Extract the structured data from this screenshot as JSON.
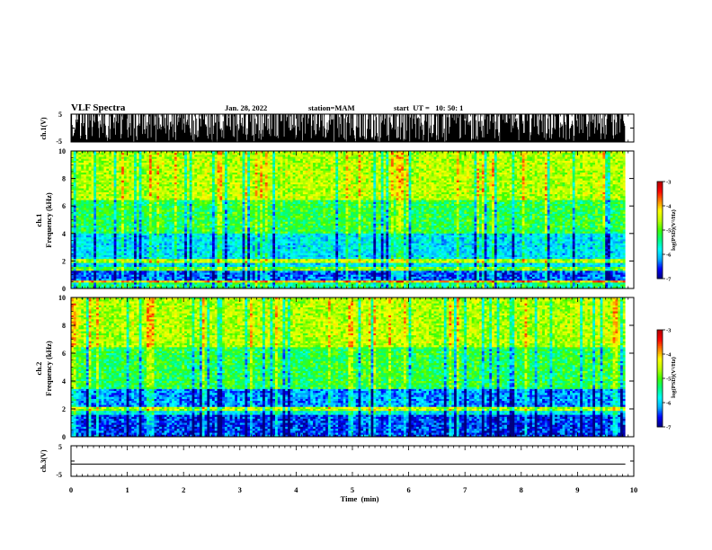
{
  "header": {
    "title": "VLF Spectra",
    "date": "Jan. 28, 2022",
    "station": "station=MAM",
    "start": "start  UT =   10: 50: 1"
  },
  "chart_data": [
    {
      "type": "line",
      "panel": "ch1-waveform",
      "ylabel": "ch.1(V)",
      "ylim": [
        -5,
        5
      ],
      "yticks": [
        "5",
        "-5"
      ],
      "xlim": [
        0,
        10
      ],
      "description_values": {
        "baseline": -5,
        "impulsive_spikes_max": 5
      }
    },
    {
      "type": "heatmap",
      "panel": "ch1-spectrogram",
      "ylabel": "ch.1 Frequency (kHz)",
      "ylabel_lines": [
        "ch.1",
        "Frequency (kHz)"
      ],
      "ylim": [
        0,
        10
      ],
      "yticks": [
        "0",
        "2",
        "4",
        "6",
        "8",
        "10"
      ],
      "xlim": [
        0,
        9.85
      ],
      "colorbar": {
        "label": "log(PSD)(V²/Hz)",
        "range": [
          -7,
          -3
        ],
        "ticks": [
          "-3",
          "-4",
          "-5",
          "-6",
          "-7"
        ]
      },
      "bands_khz": [
        {
          "low": 0.0,
          "high": 0.45,
          "level": -5.4
        },
        {
          "low": 0.45,
          "high": 0.6,
          "level": -4.0
        },
        {
          "low": 0.6,
          "high": 1.3,
          "level": -6.4
        },
        {
          "low": 1.3,
          "high": 1.6,
          "level": -5.0
        },
        {
          "low": 1.6,
          "high": 1.85,
          "level": -5.9
        },
        {
          "low": 1.85,
          "high": 2.15,
          "level": -4.6
        },
        {
          "low": 2.15,
          "high": 4.0,
          "level": -5.9
        },
        {
          "low": 4.0,
          "high": 6.5,
          "level": -5.2
        },
        {
          "low": 6.5,
          "high": 10.0,
          "level": -4.6
        }
      ]
    },
    {
      "type": "heatmap",
      "panel": "ch2-spectrogram",
      "ylabel": "ch.2 Frequency (kHz)",
      "ylabel_lines": [
        "ch.2",
        "Frequency (kHz)"
      ],
      "ylim": [
        0,
        10
      ],
      "yticks": [
        "0",
        "2",
        "4",
        "6",
        "8",
        "10"
      ],
      "xlim": [
        0,
        9.85
      ],
      "colorbar": {
        "label": "log(PSD)(V²/Hz)",
        "range": [
          -7,
          -3
        ],
        "ticks": [
          "-3",
          "-4",
          "-5",
          "-6",
          "-7"
        ]
      },
      "bands_khz": [
        {
          "low": 0.0,
          "high": 1.6,
          "level": -6.5
        },
        {
          "low": 1.6,
          "high": 1.85,
          "level": -5.8
        },
        {
          "low": 1.85,
          "high": 2.15,
          "level": -4.6
        },
        {
          "low": 2.15,
          "high": 3.5,
          "level": -6.2
        },
        {
          "low": 3.5,
          "high": 6.5,
          "level": -5.2
        },
        {
          "low": 6.5,
          "high": 10.0,
          "level": -4.6
        }
      ]
    },
    {
      "type": "line",
      "panel": "ch3-waveform",
      "ylabel": "ch.3(V)",
      "ylim": [
        -5,
        5
      ],
      "yticks": [
        "5",
        "0",
        "-5"
      ],
      "xlim": [
        0,
        10
      ],
      "series": [
        {
          "x": [
            0,
            9.85
          ],
          "y": [
            -1,
            -1
          ]
        }
      ]
    }
  ],
  "xaxis": {
    "label": "Time  (min)",
    "range": [
      0,
      10
    ],
    "ticks": [
      "0",
      "1",
      "2",
      "3",
      "4",
      "5",
      "6",
      "7",
      "8",
      "9",
      "10"
    ]
  },
  "colors": {
    "colormap": [
      "#000080",
      "#0000ff",
      "#00b0ff",
      "#00ffff",
      "#00ff80",
      "#40ff00",
      "#c0ff00",
      "#ffff00",
      "#ff8000",
      "#ff0000",
      "#b00000"
    ]
  }
}
